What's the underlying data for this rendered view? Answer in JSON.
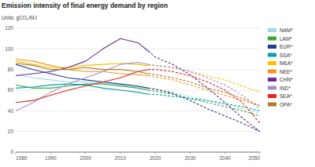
{
  "chart_data": {
    "type": "line",
    "title": "Emission intensity of final energy demand by region",
    "subtitle": "Units: gCO₂/MJ",
    "x": [
      1980,
      1985,
      1990,
      1995,
      2000,
      2005,
      2010,
      2015,
      2018,
      2020,
      2025,
      2030,
      2035,
      2040,
      2045,
      2050
    ],
    "xlim": [
      1980,
      2050
    ],
    "xticks": [
      1980,
      1990,
      2000,
      2010,
      2020,
      2030,
      2040,
      2050
    ],
    "ylim": [
      0,
      120
    ],
    "yticks": [
      0,
      20,
      40,
      60,
      80,
      100,
      120
    ],
    "grid": true,
    "legend": "right",
    "series": [
      {
        "name": "NAM*",
        "color": "#9fd6ea",
        "values": [
          75,
          72,
          70,
          68,
          68,
          67,
          65,
          63,
          62,
          null,
          null,
          null,
          null,
          null,
          null,
          null
        ],
        "projection": [
          null,
          null,
          null,
          null,
          null,
          null,
          null,
          null,
          62,
          61,
          58,
          54,
          50,
          46,
          42,
          38
        ]
      },
      {
        "name": "LAM*",
        "color": "#3aaa35",
        "values": [
          65,
          62,
          62,
          64,
          66,
          66,
          64,
          62,
          60,
          null,
          null,
          null,
          null,
          null,
          null,
          null
        ],
        "projection": [
          null,
          null,
          null,
          null,
          null,
          null,
          null,
          null,
          60,
          59,
          56,
          52,
          48,
          44,
          40,
          35
        ]
      },
      {
        "name": "EUR*",
        "color": "#1f3f8f",
        "values": [
          85,
          80,
          76,
          72,
          70,
          68,
          66,
          64,
          62,
          null,
          null,
          null,
          null,
          null,
          null,
          null
        ],
        "projection": [
          null,
          null,
          null,
          null,
          null,
          null,
          null,
          null,
          62,
          61,
          57,
          50,
          42,
          35,
          28,
          20
        ]
      },
      {
        "name": "SSA*",
        "color": "#00a0b0",
        "values": [
          62,
          63,
          65,
          66,
          65,
          62,
          60,
          58,
          56,
          null,
          null,
          null,
          null,
          null,
          null,
          null
        ],
        "projection": [
          null,
          null,
          null,
          null,
          null,
          null,
          null,
          null,
          56,
          56,
          54,
          52,
          50,
          47,
          44,
          40
        ]
      },
      {
        "name": "MEA*",
        "color": "#f5c400",
        "values": [
          88,
          85,
          82,
          82,
          84,
          85,
          86,
          85,
          84,
          null,
          null,
          null,
          null,
          null,
          null,
          null
        ],
        "projection": [
          null,
          null,
          null,
          null,
          null,
          null,
          null,
          null,
          84,
          84,
          82,
          78,
          74,
          70,
          64,
          58
        ]
      },
      {
        "name": "NEE*",
        "color": "#f7941d",
        "values": [
          90,
          88,
          84,
          80,
          78,
          78,
          76,
          75,
          74,
          null,
          null,
          null,
          null,
          null,
          null,
          null
        ],
        "projection": [
          null,
          null,
          null,
          null,
          null,
          null,
          null,
          null,
          74,
          73,
          70,
          65,
          60,
          55,
          50,
          45
        ]
      },
      {
        "name": "CHN*",
        "color": "#6a2c91",
        "values": [
          74,
          76,
          78,
          82,
          88,
          100,
          110,
          106,
          98,
          null,
          null,
          null,
          null,
          null,
          null,
          null
        ],
        "projection": [
          null,
          null,
          null,
          null,
          null,
          null,
          null,
          null,
          98,
          92,
          85,
          75,
          62,
          48,
          33,
          20
        ]
      },
      {
        "name": "IND*",
        "color": "#a98fc9",
        "values": [
          40,
          48,
          58,
          66,
          72,
          78,
          85,
          87,
          85,
          null,
          null,
          null,
          null,
          null,
          null,
          null
        ],
        "projection": [
          null,
          null,
          null,
          null,
          null,
          null,
          null,
          null,
          85,
          84,
          82,
          78,
          72,
          65,
          55,
          42
        ]
      },
      {
        "name": "SEA*",
        "color": "#e2231a",
        "values": [
          48,
          50,
          55,
          60,
          64,
          68,
          72,
          78,
          80,
          null,
          null,
          null,
          null,
          null,
          null,
          null
        ],
        "projection": [
          null,
          null,
          null,
          null,
          null,
          null,
          null,
          null,
          80,
          80,
          78,
          74,
          68,
          60,
          48,
          28
        ]
      },
      {
        "name": "OPA*",
        "color": "#b07a2a",
        "values": [
          86,
          84,
          80,
          80,
          82,
          80,
          80,
          78,
          76,
          null,
          null,
          null,
          null,
          null,
          null,
          null
        ],
        "projection": [
          null,
          null,
          null,
          null,
          null,
          null,
          null,
          null,
          76,
          75,
          72,
          68,
          62,
          58,
          52,
          45
        ]
      }
    ]
  }
}
